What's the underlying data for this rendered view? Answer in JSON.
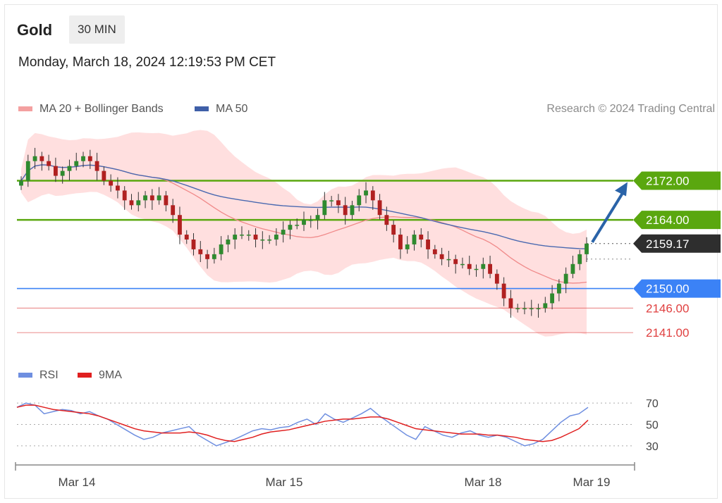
{
  "header": {
    "asset": "Gold",
    "timeframe": "30 MIN",
    "timestamp": "Monday, March 18, 2024 12:19:53 PM CET"
  },
  "legend": {
    "ma20_label": "MA 20 + Bollinger Bands",
    "ma50_label": "MA 50",
    "credit": "Research © 2024 Trading Central"
  },
  "rsi_legend": {
    "rsi_label": "RSI",
    "ma9_label": "9MA"
  },
  "colors": {
    "resistance": "#5aa70f",
    "support": "#3b82f6",
    "minor": "#e04040",
    "current": "#2e2e2e",
    "bollinger": "#ffd4d4",
    "ma20": "#f08a8a",
    "ma50": "#4a69b0",
    "up_candle": "#2f8a2f",
    "down_candle": "#b02020",
    "arrow": "#2a63a8",
    "rsi": "#6f8fe0",
    "ma9": "#e02020"
  },
  "chart_data": [
    {
      "type": "candlestick",
      "title": "Gold",
      "x_ticks": [
        "Mar 14",
        "Mar 15",
        "Mar 18",
        "Mar 19"
      ],
      "ylim": [
        2137,
        2183
      ],
      "levels": [
        {
          "value": 2172.0,
          "label": "2172.00",
          "kind": "resistance"
        },
        {
          "value": 2164.0,
          "label": "2164.00",
          "kind": "resistance"
        },
        {
          "value": 2159.17,
          "label": "2159.17",
          "kind": "current"
        },
        {
          "value": 2150.0,
          "label": "2150.00",
          "kind": "support"
        },
        {
          "value": 2146.0,
          "label": "2146.00",
          "kind": "minor"
        },
        {
          "value": 2141.0,
          "label": "2141.00",
          "kind": "minor"
        }
      ],
      "close_series": [
        2172,
        2176,
        2177,
        2176,
        2175,
        2173,
        2174,
        2175,
        2176,
        2177,
        2176,
        2174,
        2172,
        2171,
        2170,
        2168,
        2167,
        2168,
        2169,
        2168,
        2169,
        2167,
        2165,
        2161,
        2160,
        2158,
        2157,
        2156,
        2157,
        2159,
        2160,
        2161,
        2161,
        2161,
        2160,
        2160,
        2160,
        2161,
        2162,
        2163,
        2163,
        2164,
        2164,
        2165,
        2168,
        2168,
        2167,
        2165,
        2167,
        2169,
        2170,
        2168,
        2165,
        2163,
        2161,
        2158,
        2159,
        2161,
        2160,
        2158,
        2157,
        2156,
        2156,
        2155,
        2155,
        2154,
        2154,
        2155,
        2153,
        2151,
        2148,
        2146,
        2146,
        2146,
        2146,
        2146,
        2147,
        2149,
        2151,
        2153,
        2155,
        2157,
        2159.17
      ],
      "projection": {
        "from": 2159.17,
        "to": 2172.0
      }
    },
    {
      "type": "line",
      "series": [
        {
          "name": "RSI"
        },
        {
          "name": "9MA"
        }
      ],
      "y_ticks": [
        70,
        50,
        30
      ],
      "ylim": [
        20,
        78
      ],
      "rsi": [
        66,
        70,
        68,
        60,
        62,
        64,
        63,
        60,
        62,
        58,
        55,
        50,
        45,
        40,
        36,
        38,
        42,
        44,
        46,
        48,
        40,
        35,
        30,
        33,
        36,
        40,
        44,
        46,
        45,
        47,
        48,
        52,
        55,
        50,
        60,
        55,
        52,
        56,
        60,
        65,
        58,
        52,
        46,
        40,
        36,
        48,
        44,
        40,
        38,
        42,
        44,
        40,
        38,
        40,
        38,
        34,
        30,
        32,
        36,
        44,
        52,
        58,
        60,
        66
      ],
      "ma9": [
        66,
        68,
        68,
        66,
        64,
        63,
        62,
        61,
        60,
        58,
        55,
        52,
        49,
        46,
        44,
        43,
        42,
        42,
        42,
        43,
        42,
        40,
        37,
        35,
        34,
        36,
        38,
        41,
        43,
        44,
        45,
        47,
        49,
        51,
        53,
        54,
        55,
        55,
        56,
        57,
        57,
        55,
        52,
        49,
        46,
        45,
        44,
        43,
        42,
        41,
        41,
        41,
        40,
        40,
        39,
        38,
        36,
        35,
        34,
        35,
        38,
        42,
        46,
        54
      ]
    }
  ]
}
